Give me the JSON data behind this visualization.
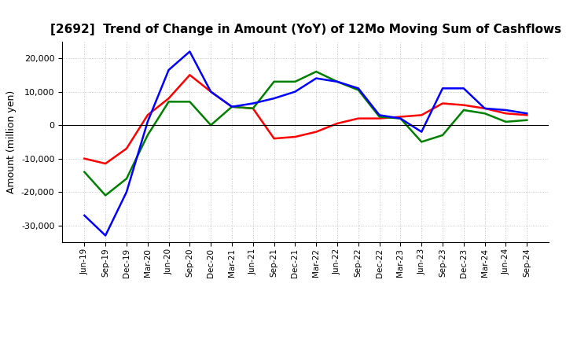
{
  "title": "[2692]  Trend of Change in Amount (YoY) of 12Mo Moving Sum of Cashflows",
  "ylabel": "Amount (million yen)",
  "x_labels": [
    "Jun-19",
    "Sep-19",
    "Dec-19",
    "Mar-20",
    "Jun-20",
    "Sep-20",
    "Dec-20",
    "Mar-21",
    "Jun-21",
    "Sep-21",
    "Dec-21",
    "Mar-22",
    "Jun-22",
    "Sep-22",
    "Dec-22",
    "Mar-23",
    "Jun-23",
    "Sep-23",
    "Dec-23",
    "Mar-24",
    "Jun-24",
    "Sep-24"
  ],
  "operating": [
    -10000,
    -11500,
    -7000,
    3000,
    8000,
    15000,
    10000,
    5500,
    5000,
    -4000,
    -3500,
    -2000,
    500,
    2000,
    2000,
    2500,
    3000,
    6500,
    6000,
    5000,
    3500,
    3000
  ],
  "investing": [
    -14000,
    -21000,
    -16000,
    -3000,
    7000,
    7000,
    0,
    5500,
    5000,
    13000,
    13000,
    16000,
    13000,
    10500,
    2500,
    2000,
    -5000,
    -3000,
    4500,
    3500,
    1000,
    1500
  ],
  "free": [
    -27000,
    -33000,
    -20000,
    1000,
    16500,
    22000,
    10000,
    5500,
    6500,
    8000,
    10000,
    14000,
    13000,
    11000,
    3000,
    2000,
    -2000,
    11000,
    11000,
    5000,
    4500,
    3500
  ],
  "op_color": "#ff0000",
  "inv_color": "#008000",
  "free_color": "#0000ff",
  "ylim": [
    -35000,
    25000
  ],
  "yticks": [
    -30000,
    -20000,
    -10000,
    0,
    10000,
    20000
  ],
  "background_color": "#ffffff",
  "grid_color": "#bbbbbb",
  "title_fontsize": 11
}
